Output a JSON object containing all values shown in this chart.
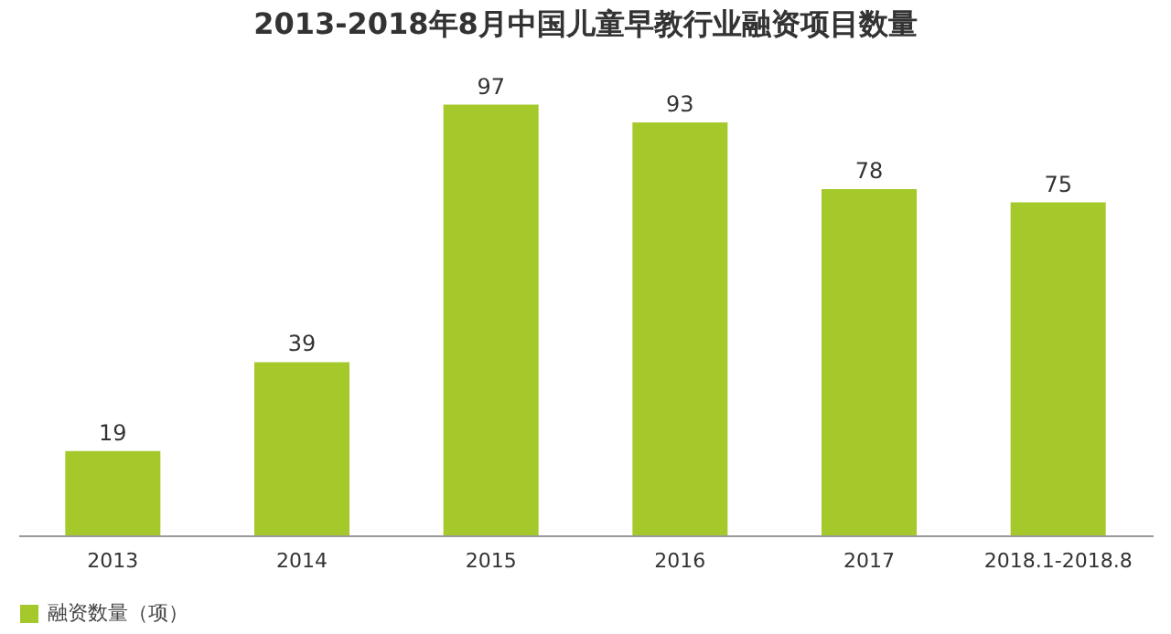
{
  "chart_data": {
    "type": "bar",
    "title": "2013-2018年8月中国儿童早教行业融资项目数量",
    "categories": [
      "2013",
      "2014",
      "2015",
      "2016",
      "2017",
      "2018.1-2018.8"
    ],
    "series": [
      {
        "name": "融资数量（项）",
        "color": "#a5c82a",
        "values": [
          19,
          39,
          97,
          93,
          78,
          75
        ]
      }
    ],
    "data_labels": true,
    "legend": "bottom"
  }
}
